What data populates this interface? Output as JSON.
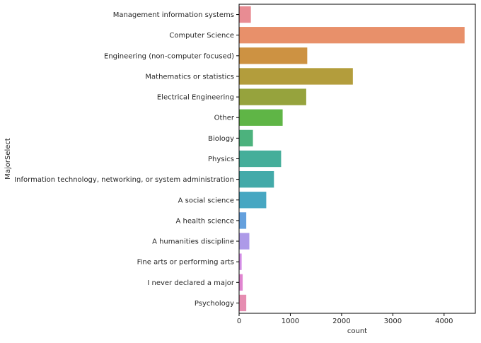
{
  "chart_data": {
    "type": "bar",
    "orientation": "horizontal",
    "title": "",
    "xlabel": "count",
    "ylabel": "MajorSelect",
    "xlim": [
      0,
      4610
    ],
    "x_ticks": [
      0,
      1000,
      2000,
      3000,
      4000
    ],
    "grid": false,
    "categories": [
      "Management information systems",
      "Computer Science",
      "Engineering (non-computer focused)",
      "Mathematics or statistics",
      "Electrical Engineering",
      "Other",
      "Biology",
      "Physics",
      "Information technology, networking, or system administration",
      "A social science",
      "A health science",
      "A humanities discipline",
      "Fine arts or performing arts",
      "I never declared a major",
      "Psychology"
    ],
    "values": [
      230,
      4400,
      1330,
      2220,
      1310,
      850,
      270,
      820,
      680,
      530,
      140,
      200,
      50,
      70,
      140
    ],
    "colors": [
      "#e88c93",
      "#e8906a",
      "#cd9242",
      "#b39d3c",
      "#96a33d",
      "#5fb546",
      "#4cb27d",
      "#45ae9a",
      "#43aaa9",
      "#47a7c2",
      "#64a0dd",
      "#ad9ae8",
      "#d38ee6",
      "#e085d0",
      "#e68db1"
    ]
  }
}
